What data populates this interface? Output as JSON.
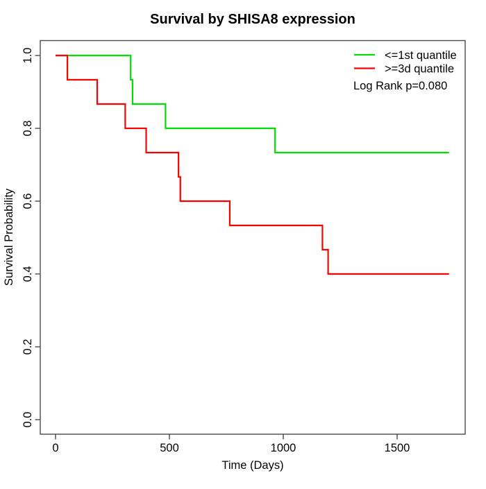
{
  "title": "Survival by SHISA8 expression",
  "axes": {
    "x": {
      "label": "Time (Days)",
      "tick_labels": [
        "0",
        "500",
        "1000",
        "1500"
      ]
    },
    "y": {
      "label": "Survival Probability",
      "tick_labels": [
        "0.0",
        "0.2",
        "0.4",
        "0.6",
        "0.8",
        "1.0"
      ]
    }
  },
  "legend": {
    "items": [
      {
        "label": "<=1st quantile",
        "color": "#00e000"
      },
      {
        "label": ">=3d quantile",
        "color": "#ff0000"
      }
    ],
    "note": "Log Rank p=0.080"
  },
  "chart_data": {
    "type": "line",
    "subtype": "kaplan-meier-step",
    "title": "Survival by SHISA8 expression",
    "xlabel": "Time (Days)",
    "ylabel": "Survival Probability",
    "xlim": [
      0,
      1800
    ],
    "ylim": [
      0.0,
      1.0
    ],
    "x_ticks": [
      0,
      500,
      1000,
      1500
    ],
    "y_ticks": [
      0.0,
      0.2,
      0.4,
      0.6,
      0.8,
      1.0
    ],
    "grid": false,
    "legend_position": "top-right",
    "annotation": "Log Rank p=0.080",
    "series": [
      {
        "name": "<=1st quantile",
        "color": "#00e000",
        "steps": [
          [
            0,
            1.0
          ],
          [
            330,
            0.9333
          ],
          [
            338,
            0.8667
          ],
          [
            483,
            0.8
          ],
          [
            964,
            0.7333
          ],
          [
            1728,
            0.7333
          ]
        ]
      },
      {
        "name": ">=3d quantile",
        "color": "#ff0000",
        "steps": [
          [
            0,
            1.0
          ],
          [
            52,
            0.9333
          ],
          [
            183,
            0.8667
          ],
          [
            306,
            0.8
          ],
          [
            398,
            0.7333
          ],
          [
            540,
            0.6667
          ],
          [
            548,
            0.6
          ],
          [
            765,
            0.5333
          ],
          [
            1172,
            0.4667
          ],
          [
            1197,
            0.4
          ],
          [
            1728,
            0.4
          ]
        ]
      }
    ]
  }
}
